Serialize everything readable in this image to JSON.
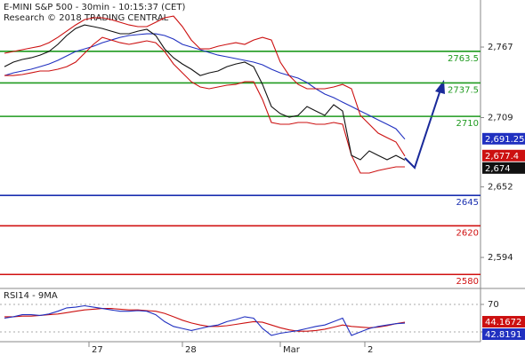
{
  "chart_data": [
    {
      "type": "price",
      "title": "E-MINI S&P 500 - 30min - 10:15:37 (CET)",
      "subtitle": "Research © 2018 TRADING CENTRAL",
      "x": [
        0,
        1,
        2,
        3,
        4,
        5,
        6,
        7,
        8,
        9,
        10,
        11,
        12,
        13,
        14,
        15,
        16,
        17,
        18,
        19,
        20,
        21,
        22,
        23,
        24,
        25,
        26,
        27,
        28,
        29,
        30,
        31,
        32,
        33,
        34,
        35,
        36,
        37,
        38,
        39,
        40,
        41,
        42,
        43,
        44,
        45
      ],
      "xlim": [
        -0.5,
        53.5
      ],
      "xticks": [
        {
          "value": 9.5,
          "label": "27"
        },
        {
          "value": 20,
          "label": "28"
        },
        {
          "value": 31,
          "label": "Mar"
        },
        {
          "value": 40.5,
          "label": "2"
        }
      ],
      "ylim": [
        2568.5,
        2805.7
      ],
      "yticks": [
        {
          "value": 2767,
          "label": "2,767"
        },
        {
          "value": 2709,
          "label": "2,709"
        },
        {
          "value": 2652,
          "label": "2,652"
        },
        {
          "value": 2594,
          "label": "2,594"
        }
      ],
      "levels": [
        {
          "value": 2763.5,
          "color": "#1f9a1f"
        },
        {
          "value": 2737.5,
          "color": "#1f9a1f"
        },
        {
          "value": 2710,
          "color": "#1f9a1f"
        },
        {
          "value": 2645,
          "color": "#1a2fb0"
        },
        {
          "value": 2620,
          "color": "#d01010"
        },
        {
          "value": 2580,
          "color": "#d01010"
        }
      ],
      "series": [
        {
          "color": "#2030c0",
          "last_label": "2,691.25",
          "values": [
            2743.6,
            2745.8,
            2747.3,
            2748.8,
            2750.9,
            2753.1,
            2756.1,
            2759.7,
            2763.4,
            2765.5,
            2767.7,
            2770.6,
            2772.8,
            2775.0,
            2776.5,
            2777.2,
            2777.9,
            2777.9,
            2776.5,
            2773.6,
            2769.2,
            2767.0,
            2764.8,
            2762.6,
            2760.4,
            2759.0,
            2757.5,
            2756.1,
            2754.6,
            2752.4,
            2748.8,
            2745.8,
            2743.6,
            2741.5,
            2737.8,
            2732.7,
            2728.3,
            2725.4,
            2721.7,
            2718.1,
            2714.4,
            2710.8,
            2707.1,
            2703.5,
            2699.8,
            2691.25
          ]
        },
        {
          "color": "#cc1010",
          "last_label": "2,677.4",
          "values": [
            2761.9,
            2763.4,
            2764.8,
            2766.3,
            2767.7,
            2770.6,
            2775.0,
            2780.1,
            2785.2,
            2789.6,
            2791.1,
            2791.1,
            2789.6,
            2787.4,
            2785.2,
            2783.8,
            2783.8,
            2787.4,
            2791.1,
            2792.5,
            2783.8,
            2772.8,
            2765.5,
            2765.5,
            2767.7,
            2769.2,
            2770.6,
            2769.2,
            2772.8,
            2775.0,
            2772.8,
            2754.6,
            2743.6,
            2736.3,
            2732.7,
            2732.7,
            2732.7,
            2734.2,
            2736.3,
            2732.7,
            2710.8,
            2703.5,
            2696.2,
            2692.5,
            2688.9,
            2677.4
          ]
        },
        {
          "color": "#cc1010",
          "values": [
            2743.6,
            2743.6,
            2744.4,
            2745.8,
            2747.3,
            2747.3,
            2748.8,
            2750.9,
            2754.6,
            2761.9,
            2769.2,
            2775.0,
            2772.8,
            2770.6,
            2769.2,
            2770.6,
            2772.1,
            2770.6,
            2763.4,
            2753.1,
            2745.8,
            2738.5,
            2734.2,
            2732.7,
            2734.2,
            2735.6,
            2736.3,
            2738.5,
            2738.5,
            2723.9,
            2705.0,
            2703.5,
            2703.5,
            2705.0,
            2705.0,
            2703.5,
            2703.5,
            2705.0,
            2703.5,
            2677.9,
            2663.4,
            2663.4,
            2665.5,
            2667.0,
            2668.5,
            2668.5
          ]
        },
        {
          "color": "#111111",
          "last_label": "2,674",
          "values": [
            2750.9,
            2754.6,
            2756.8,
            2758.2,
            2760.4,
            2763.4,
            2769.2,
            2776.5,
            2782.3,
            2785.2,
            2783.8,
            2782.3,
            2780.1,
            2778.0,
            2778.0,
            2780.1,
            2781.6,
            2776.5,
            2765.5,
            2758.2,
            2753.1,
            2748.8,
            2743.6,
            2745.8,
            2747.3,
            2750.9,
            2753.1,
            2754.6,
            2750.9,
            2736.3,
            2718.1,
            2712.3,
            2709.3,
            2710.8,
            2718.1,
            2714.4,
            2710.8,
            2719.6,
            2714.4,
            2677.9,
            2674.3,
            2681.6,
            2677.9,
            2674.3,
            2677.9,
            2674
          ]
        }
      ]
    },
    {
      "type": "oscillator",
      "title": "RSI14 - 9MA",
      "x": [
        0,
        1,
        2,
        3,
        4,
        5,
        6,
        7,
        8,
        9,
        10,
        11,
        12,
        13,
        14,
        15,
        16,
        17,
        18,
        19,
        20,
        21,
        22,
        23,
        24,
        25,
        26,
        27,
        28,
        29,
        30,
        31,
        32,
        33,
        34,
        35,
        36,
        37,
        38,
        39,
        40,
        41,
        42,
        43,
        44,
        45
      ],
      "xlim": [
        -0.5,
        53.5
      ],
      "ylim": [
        15.8,
        93.2
      ],
      "yticks": [
        70,
        30
      ],
      "series": [
        {
          "color": "#cc1010",
          "last_label": "44.1672",
          "values": [
            52,
            52,
            53,
            53,
            54,
            55,
            56,
            58,
            60,
            62,
            63,
            64,
            64,
            63,
            62,
            62,
            61,
            60,
            57,
            52,
            47,
            43,
            40,
            38,
            38,
            39,
            41,
            43,
            45,
            44,
            40,
            36,
            33,
            31,
            31,
            32,
            34,
            37,
            40,
            38,
            37,
            36,
            37,
            39,
            42,
            44.1672
          ]
        },
        {
          "color": "#2030c0",
          "last_label": "42.8191",
          "values": [
            50,
            52,
            55,
            55,
            54,
            56,
            60,
            65,
            66,
            68,
            66,
            64,
            62,
            60,
            60,
            61,
            60,
            55,
            45,
            38,
            35,
            32,
            35,
            38,
            40,
            45,
            48,
            52,
            50,
            35,
            25,
            28,
            30,
            32,
            35,
            38,
            40,
            45,
            50,
            25,
            30,
            35,
            38,
            40,
            42,
            42.8191
          ]
        }
      ]
    }
  ]
}
